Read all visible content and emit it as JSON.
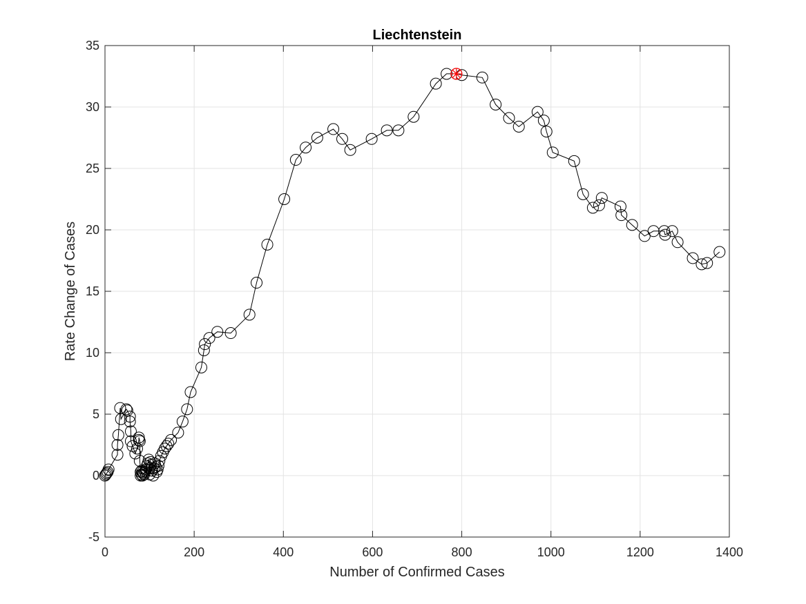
{
  "chart_data": {
    "type": "line",
    "title": "Liechtenstein",
    "xlabel": "Number of Confirmed Cases",
    "ylabel": "Rate Change of Cases",
    "xlim": [
      0,
      1400
    ],
    "ylim": [
      -5,
      35
    ],
    "xticks": [
      0,
      200,
      400,
      600,
      800,
      1000,
      1200,
      1400
    ],
    "yticks": [
      -5,
      0,
      5,
      10,
      15,
      20,
      25,
      30,
      35
    ],
    "grid": true,
    "line_color": "#000000",
    "marker": "circle",
    "peak_marker_color": "#ff0000",
    "peak": {
      "x": 788,
      "y": 32.7
    },
    "series": [
      {
        "x": [
          0,
          2,
          4,
          6,
          8,
          28,
          28,
          30,
          34,
          36,
          48,
          50,
          56,
          56,
          58,
          58,
          62,
          68,
          72,
          76,
          76,
          78,
          78,
          80,
          80,
          82,
          82,
          84,
          84,
          86,
          88,
          90,
          92,
          94,
          96,
          98,
          100,
          100,
          102,
          104,
          106,
          108,
          110,
          112,
          114,
          116,
          118,
          120,
          122,
          126,
          130,
          134,
          138,
          142,
          148,
          164,
          174,
          184,
          192,
          216,
          222,
          224,
          234,
          252,
          282,
          324,
          340,
          364,
          402,
          428,
          450,
          476,
          512,
          532,
          550,
          598,
          632,
          658,
          692,
          742,
          766,
          788,
          800,
          846,
          876,
          906,
          928,
          970,
          984,
          990,
          1004,
          1052,
          1072,
          1094,
          1108,
          1114,
          1156,
          1158,
          1182,
          1210,
          1230,
          1254,
          1256,
          1272,
          1284,
          1318,
          1338,
          1350,
          1378
        ],
        "y": [
          0.0,
          0.1,
          0.2,
          0.3,
          0.5,
          1.7,
          2.5,
          3.3,
          5.5,
          4.6,
          5.4,
          5.3,
          4.8,
          4.4,
          3.6,
          2.8,
          2.4,
          1.8,
          2.2,
          2.9,
          3.1,
          2.8,
          1.2,
          0.3,
          0.0,
          0.4,
          0.1,
          0.3,
          0.0,
          0.2,
          0.1,
          0.3,
          0.5,
          0.8,
          1.0,
          1.3,
          0.6,
          0.1,
          1.1,
          0.9,
          0.4,
          0.0,
          0.6,
          1.0,
          0.7,
          0.3,
          0.5,
          0.8,
          1.2,
          1.6,
          1.9,
          2.2,
          2.4,
          2.6,
          2.9,
          3.5,
          4.4,
          5.4,
          6.8,
          8.8,
          10.2,
          10.7,
          11.2,
          11.7,
          11.6,
          13.1,
          15.7,
          18.8,
          22.5,
          25.7,
          26.7,
          27.5,
          28.2,
          27.4,
          26.5,
          27.4,
          28.1,
          28.1,
          29.2,
          31.9,
          32.7,
          32.7,
          32.6,
          32.4,
          30.2,
          29.1,
          28.4,
          29.6,
          28.9,
          28.0,
          26.3,
          25.6,
          22.9,
          21.8,
          22.0,
          22.6,
          21.9,
          21.2,
          20.4,
          19.5,
          19.9,
          19.9,
          19.6,
          19.9,
          19.0,
          17.7,
          17.2,
          17.3,
          18.2
        ]
      }
    ]
  }
}
